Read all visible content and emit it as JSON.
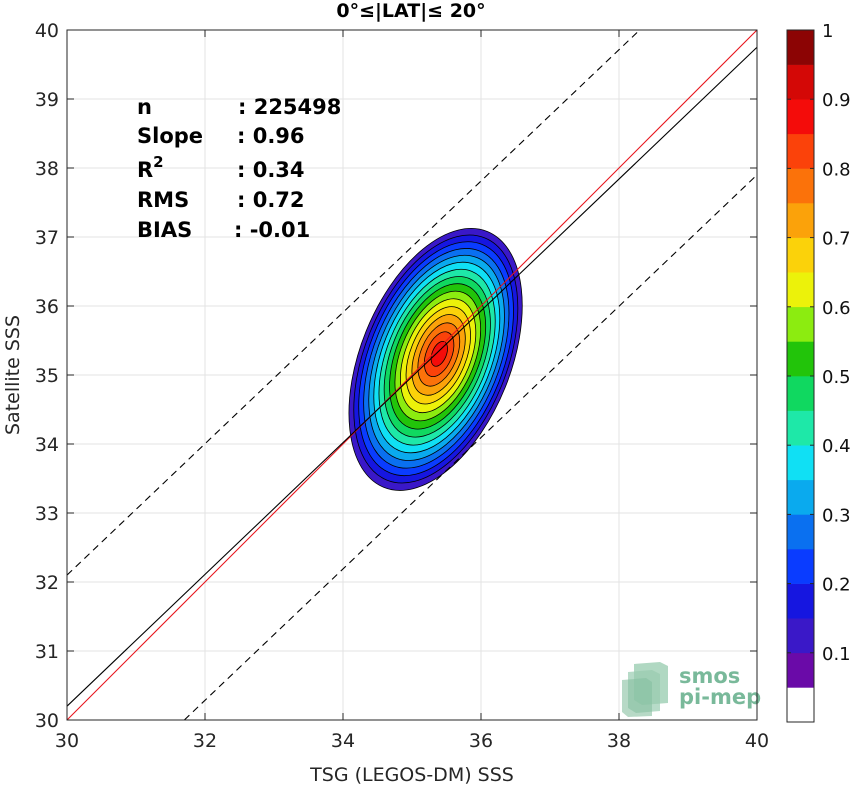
{
  "chart_data": {
    "type": "heatmap",
    "title": "0°≤|LAT|≤ 20°",
    "xlabel": "TSG (LEGOS-DM) SSS",
    "ylabel": "Satellite SSS",
    "xlim": [
      30,
      40
    ],
    "ylim": [
      30,
      40
    ],
    "xticks": [
      "30",
      "32",
      "34",
      "36",
      "38",
      "40"
    ],
    "yticks": [
      "30",
      "31",
      "32",
      "33",
      "34",
      "35",
      "36",
      "37",
      "38",
      "39",
      "40"
    ],
    "grid": true,
    "stats": [
      {
        "label": "n",
        "value": ": 225498"
      },
      {
        "label": "Slope",
        "value": ": 0.96"
      },
      {
        "label": "R",
        "sup": "2",
        "value": ": 0.34"
      },
      {
        "label": "RMS",
        "value": ": 0.72"
      },
      {
        "label": "BIAS",
        "value": ": -0.01"
      }
    ],
    "density_peak": {
      "x": 35.4,
      "y": 35.4
    },
    "contour_levels": [
      0.05,
      0.1,
      0.2,
      0.3,
      0.4,
      0.5,
      0.6,
      0.7,
      0.8,
      0.9
    ],
    "lines": [
      {
        "name": "identity",
        "color": "#e8141c",
        "x": [
          30,
          40
        ],
        "y": [
          30,
          40
        ]
      },
      {
        "name": "fit",
        "color": "#000000",
        "x": [
          30,
          40
        ],
        "y": [
          30.2,
          39.75
        ]
      },
      {
        "name": "upper bound",
        "color": "#000000",
        "dash": true,
        "x": [
          30,
          38.3
        ],
        "y": [
          32.1,
          40
        ]
      },
      {
        "name": "lower bound",
        "color": "#000000",
        "dash": true,
        "x": [
          31.7,
          40
        ],
        "y": [
          30,
          37.9
        ]
      }
    ],
    "colorbar": {
      "range": [
        0,
        1
      ],
      "ticks": [
        "0.1",
        "0.2",
        "0.3",
        "0.4",
        "0.5",
        "0.6",
        "0.7",
        "0.8",
        "0.9",
        "1"
      ],
      "colors": [
        "#ffffff",
        "#6a0aa8",
        "#3a18c8",
        "#1616e0",
        "#0a3cff",
        "#0a70f0",
        "#0aaaee",
        "#10e0f4",
        "#1ee8a8",
        "#10d860",
        "#22c40a",
        "#8cec10",
        "#ecf20a",
        "#fbd20a",
        "#fba20a",
        "#fb720a",
        "#fb420a",
        "#f40c0a",
        "#d40806",
        "#8c0404"
      ]
    }
  },
  "logo": {
    "line1": "smos",
    "line2": "pi-mep"
  }
}
